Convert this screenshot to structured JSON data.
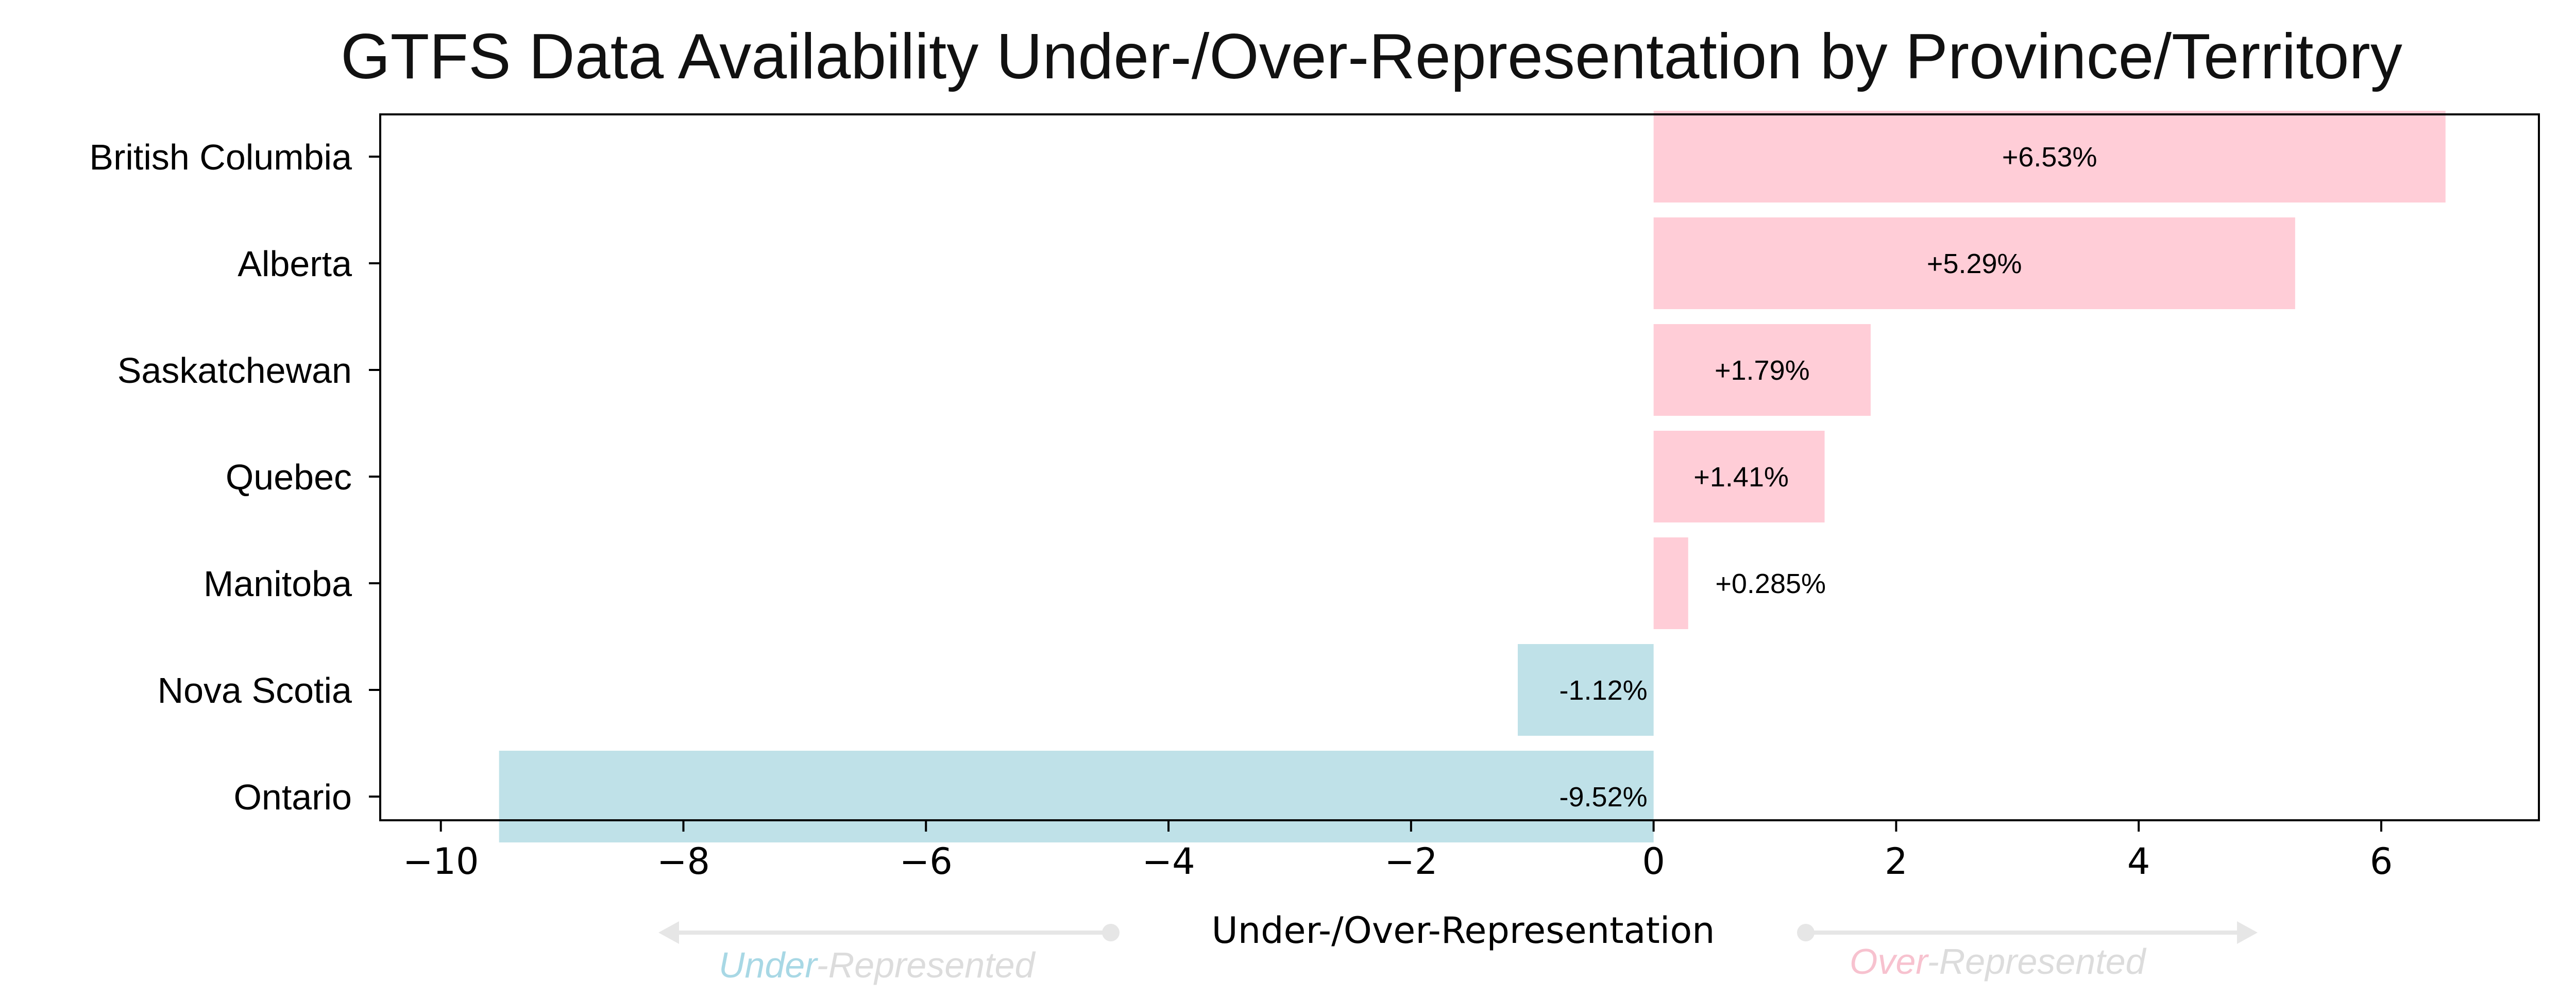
{
  "chart_data": {
    "type": "bar",
    "orientation": "horizontal",
    "title": "GTFS Data Availability Under-/Over-Representation by Province/Territory",
    "xlabel": "Under-/Over-Representation",
    "ylabel": "",
    "categories": [
      "British Columbia",
      "Alberta",
      "Saskatchewan",
      "Quebec",
      "Manitoba",
      "Nova Scotia",
      "Ontario"
    ],
    "values": [
      6.53,
      5.29,
      1.79,
      1.41,
      0.285,
      -1.12,
      -9.52
    ],
    "data_labels": [
      "+6.53%",
      "+5.29%",
      "+1.79%",
      "+1.41%",
      "+0.285%",
      "-1.12%",
      "-9.52%"
    ],
    "xlim": [
      -10.5,
      7.3
    ],
    "xticks": [
      -10,
      -8,
      -6,
      -4,
      -2,
      0,
      2,
      4,
      6
    ],
    "xtick_labels": [
      "−10",
      "−8",
      "−6",
      "−4",
      "−2",
      "0",
      "2",
      "4",
      "6"
    ],
    "grid": false,
    "colors": {
      "positive": "#ffcdd7",
      "negative": "#bfe1e8",
      "frame": "#000000",
      "annotation_arrow": "#e6e6e6"
    },
    "annotations": {
      "under": {
        "highlight": "Under",
        "rest": "-Represented",
        "highlight_color": "#a8d8e5"
      },
      "over": {
        "highlight": "Over",
        "rest": "-Represented",
        "highlight_color": "#f7c2cf"
      }
    }
  }
}
